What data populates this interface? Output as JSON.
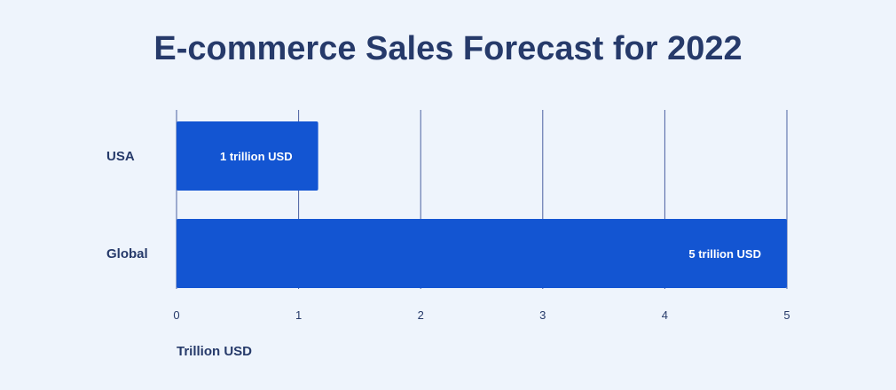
{
  "title": "E-commerce Sales Forecast for 2022",
  "colors": {
    "background": "#eef4fc",
    "bar": "#1355d2",
    "grid": "#4a5fa0",
    "text": "#263a6a",
    "bar_label": "#ffffff"
  },
  "chart_data": {
    "type": "bar",
    "orientation": "horizontal",
    "title": "E-commerce Sales Forecast for 2022",
    "categories": [
      "USA",
      "Global"
    ],
    "values": [
      1.16,
      5
    ],
    "data_labels": [
      "1 trillion USD",
      "5 trillion USD"
    ],
    "xlabel": "Trillion USD",
    "ylabel": "",
    "xlim": [
      0,
      5
    ],
    "xticks": [
      "0",
      "1",
      "2",
      "3",
      "4",
      "5"
    ],
    "grid": "vertical"
  }
}
